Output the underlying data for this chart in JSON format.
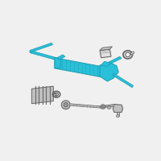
{
  "background_color": "#f0f0f0",
  "main_color": "#29c0d8",
  "main_dark": "#1a9ab0",
  "gray_light": "#c0c0c0",
  "gray_mid": "#999999",
  "gray_dark": "#666666",
  "outline": "#444444",
  "white": "#ffffff",
  "fig_width": 2.0,
  "fig_height": 2.0,
  "dpi": 100
}
